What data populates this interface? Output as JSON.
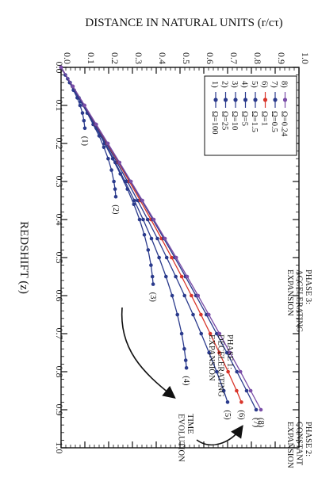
{
  "chart_data": {
    "type": "line",
    "title": "",
    "xlabel": "REDSHIFT (z)",
    "ylabel": "DISTANCE IN NATURAL UNITS (r/cτ)",
    "xlim": [
      0.0,
      1.0
    ],
    "ylim": [
      0.0,
      1.0
    ],
    "x_ticks": [
      "0.0",
      "0.1",
      "0.2",
      "0.3",
      "0.4",
      "0.5",
      "0.6",
      "0.7",
      "0.8",
      "0.9",
      "1.0"
    ],
    "y_ticks": [
      "0.0",
      "0.1",
      "0.2",
      "0.3",
      "0.4",
      "0.5",
      "0.6",
      "0.7",
      "0.8",
      "0.9",
      "1.0"
    ],
    "legend_position": "top-right",
    "series": [
      {
        "name": "Ω=100",
        "legend_index": "1)",
        "end_label": "(1)",
        "color": "#2a3a8c",
        "x": [
          0.0,
          0.02,
          0.04,
          0.06,
          0.08,
          0.1,
          0.12,
          0.14,
          0.16
        ],
        "y": [
          0.0,
          0.018,
          0.036,
          0.052,
          0.068,
          0.08,
          0.09,
          0.096,
          0.1
        ]
      },
      {
        "name": "Ω=25",
        "legend_index": "2)",
        "end_label": "(2)",
        "color": "#2a3a8c",
        "x": [
          0.0,
          0.03,
          0.06,
          0.09,
          0.12,
          0.15,
          0.18,
          0.21,
          0.24,
          0.27,
          0.3,
          0.32,
          0.34
        ],
        "y": [
          0.0,
          0.028,
          0.055,
          0.083,
          0.11,
          0.135,
          0.16,
          0.18,
          0.198,
          0.212,
          0.222,
          0.227,
          0.23
        ]
      },
      {
        "name": "Ω=10",
        "legend_index": "3)",
        "end_label": "(3)",
        "color": "#2a3a8c",
        "x": [
          0.0,
          0.04,
          0.08,
          0.12,
          0.16,
          0.2,
          0.24,
          0.28,
          0.32,
          0.36,
          0.4,
          0.44,
          0.48,
          0.52,
          0.55,
          0.57
        ],
        "y": [
          0.0,
          0.038,
          0.075,
          0.112,
          0.148,
          0.183,
          0.217,
          0.249,
          0.279,
          0.306,
          0.33,
          0.35,
          0.366,
          0.378,
          0.384,
          0.387
        ]
      },
      {
        "name": "Ω=5",
        "legend_index": "4)",
        "end_label": "(4)",
        "color": "#2a3a8c",
        "x": [
          0.0,
          0.05,
          0.1,
          0.15,
          0.2,
          0.25,
          0.3,
          0.35,
          0.4,
          0.45,
          0.5,
          0.55,
          0.6,
          0.65,
          0.7,
          0.74,
          0.77,
          0.79
        ],
        "y": [
          0.0,
          0.048,
          0.095,
          0.14,
          0.185,
          0.228,
          0.269,
          0.308,
          0.345,
          0.38,
          0.412,
          0.441,
          0.467,
          0.489,
          0.507,
          0.518,
          0.524,
          0.527
        ]
      },
      {
        "name": "Ω=1.5",
        "legend_index": "5)",
        "end_label": "(5)",
        "color": "#2a3a8c",
        "x": [
          0.0,
          0.05,
          0.1,
          0.15,
          0.2,
          0.25,
          0.3,
          0.35,
          0.4,
          0.45,
          0.5,
          0.55,
          0.6,
          0.65,
          0.7,
          0.75,
          0.8,
          0.85,
          0.88
        ],
        "y": [
          0.0,
          0.049,
          0.097,
          0.144,
          0.19,
          0.235,
          0.279,
          0.322,
          0.364,
          0.405,
          0.444,
          0.482,
          0.519,
          0.555,
          0.589,
          0.622,
          0.654,
          0.684,
          0.7
        ]
      },
      {
        "name": "Ω=1",
        "legend_index": "6)",
        "end_label": "(6)",
        "color": "#d9362b",
        "x": [
          0.0,
          0.05,
          0.1,
          0.15,
          0.2,
          0.25,
          0.3,
          0.35,
          0.4,
          0.45,
          0.5,
          0.55,
          0.6,
          0.65,
          0.7,
          0.75,
          0.8,
          0.85,
          0.88
        ],
        "y": [
          0.0,
          0.049,
          0.098,
          0.146,
          0.194,
          0.241,
          0.287,
          0.333,
          0.378,
          0.422,
          0.465,
          0.507,
          0.548,
          0.588,
          0.627,
          0.665,
          0.702,
          0.738,
          0.758
        ]
      },
      {
        "name": "Ω=0.5",
        "legend_index": "7)",
        "end_label": "(7)",
        "color": "#2a3a8c",
        "x": [
          0.0,
          0.05,
          0.1,
          0.15,
          0.2,
          0.25,
          0.3,
          0.35,
          0.4,
          0.45,
          0.5,
          0.55,
          0.6,
          0.65,
          0.7,
          0.75,
          0.8,
          0.85,
          0.9
        ],
        "y": [
          0.0,
          0.049,
          0.098,
          0.147,
          0.196,
          0.244,
          0.292,
          0.339,
          0.386,
          0.432,
          0.478,
          0.523,
          0.567,
          0.611,
          0.654,
          0.697,
          0.739,
          0.78,
          0.82
        ]
      },
      {
        "name": "Ω=0.24",
        "legend_index": "8)",
        "end_label": "(8)",
        "color": "#7a4ea8",
        "x": [
          0.0,
          0.05,
          0.1,
          0.15,
          0.2,
          0.25,
          0.3,
          0.35,
          0.4,
          0.45,
          0.5,
          0.55,
          0.6,
          0.65,
          0.7,
          0.75,
          0.8,
          0.85,
          0.9
        ],
        "y": [
          0.0,
          0.05,
          0.099,
          0.148,
          0.197,
          0.246,
          0.294,
          0.342,
          0.39,
          0.437,
          0.484,
          0.53,
          0.576,
          0.621,
          0.666,
          0.71,
          0.754,
          0.797,
          0.84
        ]
      }
    ],
    "annotations": {
      "phase3": [
        "PHASE 3:",
        "ACCELERATING",
        "EXPANSION"
      ],
      "phase1": [
        "PHASE 1:",
        "DECELERATING",
        "EXPANSION"
      ],
      "phase2": [
        "PHASE 2:",
        "CONSTANT",
        "EXPANSION"
      ],
      "time": [
        "TIME",
        "EVOLUTION"
      ]
    }
  }
}
